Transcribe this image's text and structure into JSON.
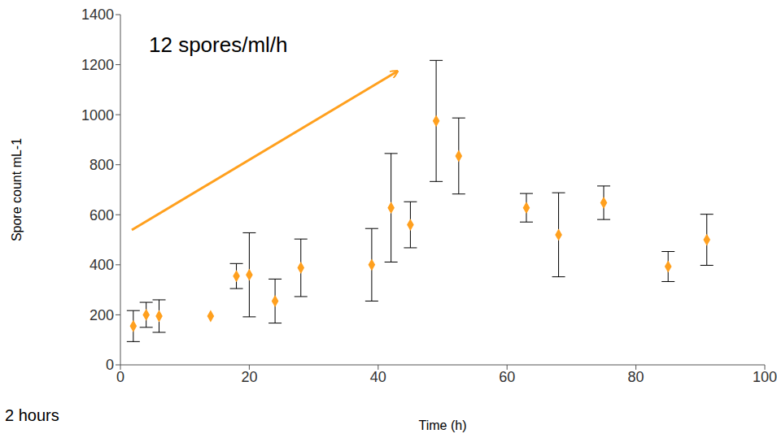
{
  "chart_data": {
    "type": "scatter",
    "xlabel": "Time (h)",
    "ylabel": "Spore count mL-1",
    "x": [
      2,
      4,
      6,
      14,
      18,
      20,
      24,
      28,
      39,
      42,
      45,
      49,
      52.5,
      63,
      68,
      75,
      85,
      91
    ],
    "values": [
      155,
      200,
      195,
      195,
      355,
      360,
      255,
      388,
      400,
      628,
      560,
      975,
      835,
      628,
      520,
      648,
      393,
      500
    ],
    "errors": [
      62,
      50,
      65,
      null,
      50,
      168,
      88,
      115,
      145,
      217,
      92,
      242,
      152,
      57,
      168,
      67,
      60,
      102
    ],
    "color": "#ffa01e",
    "marker": "diamond",
    "xlim": [
      0,
      100
    ],
    "xticks": [
      0,
      20,
      40,
      60,
      80,
      100
    ],
    "ylim": [
      0,
      1400
    ],
    "yticks": [
      0,
      200,
      400,
      600,
      800,
      1000,
      1200,
      1400
    ],
    "grid": false,
    "annotations": [
      "12 spores/ml/h",
      "2 hours"
    ]
  }
}
